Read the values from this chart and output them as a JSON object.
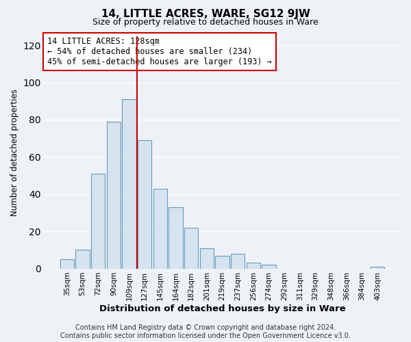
{
  "title": "14, LITTLE ACRES, WARE, SG12 9JW",
  "subtitle": "Size of property relative to detached houses in Ware",
  "xlabel": "Distribution of detached houses by size in Ware",
  "ylabel": "Number of detached properties",
  "bar_labels": [
    "35sqm",
    "53sqm",
    "72sqm",
    "90sqm",
    "109sqm",
    "127sqm",
    "145sqm",
    "164sqm",
    "182sqm",
    "201sqm",
    "219sqm",
    "237sqm",
    "256sqm",
    "274sqm",
    "292sqm",
    "311sqm",
    "329sqm",
    "348sqm",
    "366sqm",
    "384sqm",
    "403sqm"
  ],
  "bar_values": [
    5,
    10,
    51,
    79,
    91,
    69,
    43,
    33,
    22,
    11,
    7,
    8,
    3,
    2,
    0,
    0,
    0,
    0,
    0,
    0,
    1
  ],
  "bar_color": "#d6e4f0",
  "bar_edge_color": "#6699bb",
  "vline_x_index": 4,
  "vline_color": "#cc0000",
  "annotation_title": "14 LITTLE ACRES: 128sqm",
  "annotation_line1": "← 54% of detached houses are smaller (234)",
  "annotation_line2": "45% of semi-detached houses are larger (193) →",
  "annotation_box_color": "#ffffff",
  "annotation_box_edge": "#cc0000",
  "ylim": [
    0,
    125
  ],
  "yticks": [
    0,
    20,
    40,
    60,
    80,
    100,
    120
  ],
  "footer1": "Contains HM Land Registry data © Crown copyright and database right 2024.",
  "footer2": "Contains public sector information licensed under the Open Government Licence v3.0.",
  "background_color": "#eef2f7",
  "plot_background": "#eef2f7",
  "grid_color": "#ffffff",
  "title_fontsize": 11,
  "subtitle_fontsize": 9,
  "xlabel_fontsize": 9.5,
  "ylabel_fontsize": 8.5,
  "tick_fontsize": 7.5,
  "footer_fontsize": 7
}
